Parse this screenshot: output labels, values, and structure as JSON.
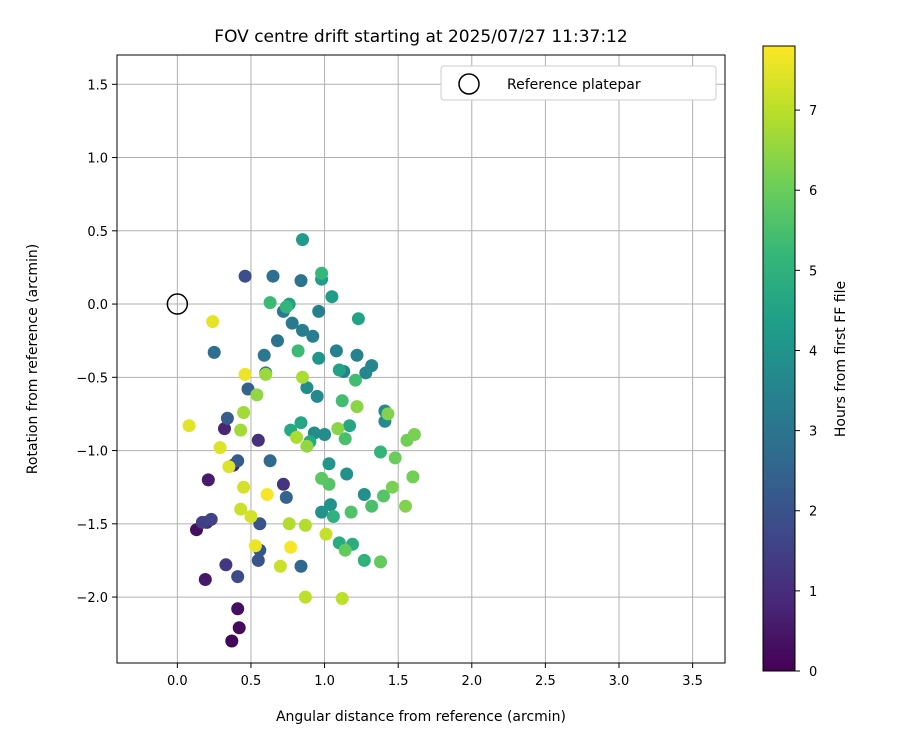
{
  "chart_data": {
    "type": "scatter",
    "title": "FOV centre drift starting at 2025/07/27 11:37:12",
    "xlabel": "Angular distance from reference (arcmin)",
    "ylabel": "Rotation from reference (arcmin)",
    "xlim": [
      -0.41,
      3.72
    ],
    "ylim": [
      -2.45,
      1.7
    ],
    "xticks": [
      0.0,
      0.5,
      1.0,
      1.5,
      2.0,
      2.5,
      3.0,
      3.5
    ],
    "xtick_labels": [
      "0.0",
      "0.5",
      "1.0",
      "1.5",
      "2.0",
      "2.5",
      "3.0",
      "3.5"
    ],
    "yticks": [
      1.5,
      1.0,
      0.5,
      0.0,
      -0.5,
      -1.0,
      -1.5,
      -2.0
    ],
    "ytick_labels": [
      "1.5",
      "1.0",
      "0.5",
      "0.0",
      "−0.5",
      "−1.0",
      "−1.5",
      "−2.0"
    ],
    "grid": true,
    "legend": {
      "placement": "upper right",
      "entries": [
        "Reference platepar"
      ]
    },
    "reference_point": {
      "x": 0.0,
      "y": 0.0,
      "label": "Reference platepar"
    },
    "colorbar": {
      "label": "Hours from first FF file",
      "min": 0,
      "max": 7.8,
      "ticks": [
        0,
        1,
        2,
        3,
        4,
        5,
        6,
        7
      ],
      "tick_labels": [
        "0",
        "1",
        "2",
        "3",
        "4",
        "5",
        "6",
        "7"
      ],
      "colormap": "viridis"
    },
    "colormap_stops": [
      "#440154",
      "#482878",
      "#3e4989",
      "#31688e",
      "#26828e",
      "#1f9e89",
      "#35b779",
      "#6ece58",
      "#b5de2b",
      "#fde725"
    ],
    "points": [
      {
        "x": 0.37,
        "y": -2.3,
        "h": 0.1
      },
      {
        "x": 0.42,
        "y": -2.21,
        "h": 0.2
      },
      {
        "x": 0.41,
        "y": -2.08,
        "h": 0.3
      },
      {
        "x": 0.13,
        "y": -1.54,
        "h": 0.3
      },
      {
        "x": 0.19,
        "y": -1.88,
        "h": 0.5
      },
      {
        "x": 0.21,
        "y": -1.2,
        "h": 0.6
      },
      {
        "x": 0.38,
        "y": -1.1,
        "h": 0.7
      },
      {
        "x": 0.32,
        "y": -0.85,
        "h": 0.8
      },
      {
        "x": 0.2,
        "y": -1.49,
        "h": 1.0
      },
      {
        "x": 0.55,
        "y": -0.93,
        "h": 1.1
      },
      {
        "x": 0.72,
        "y": -1.23,
        "h": 1.2
      },
      {
        "x": 0.33,
        "y": -1.78,
        "h": 1.3
      },
      {
        "x": 0.17,
        "y": -1.49,
        "h": 1.5
      },
      {
        "x": 0.23,
        "y": -1.47,
        "h": 1.6
      },
      {
        "x": 0.41,
        "y": -1.86,
        "h": 1.8
      },
      {
        "x": 0.46,
        "y": 0.19,
        "h": 1.9
      },
      {
        "x": 0.56,
        "y": -1.5,
        "h": 2.0
      },
      {
        "x": 0.55,
        "y": -1.75,
        "h": 2.0
      },
      {
        "x": 0.56,
        "y": -1.68,
        "h": 2.1
      },
      {
        "x": 0.41,
        "y": -1.07,
        "h": 2.2
      },
      {
        "x": 0.34,
        "y": -0.78,
        "h": 2.3
      },
      {
        "x": 0.48,
        "y": -0.58,
        "h": 2.4
      },
      {
        "x": 0.74,
        "y": -1.32,
        "h": 2.5
      },
      {
        "x": 0.84,
        "y": -1.79,
        "h": 2.6
      },
      {
        "x": 0.63,
        "y": -1.07,
        "h": 2.7
      },
      {
        "x": 0.25,
        "y": -0.33,
        "h": 2.8
      },
      {
        "x": 0.65,
        "y": 0.19,
        "h": 2.9
      },
      {
        "x": 0.84,
        "y": 0.16,
        "h": 3.0
      },
      {
        "x": 0.68,
        "y": -0.25,
        "h": 3.0
      },
      {
        "x": 0.6,
        "y": -0.47,
        "h": 3.1
      },
      {
        "x": 0.59,
        "y": -0.35,
        "h": 3.1
      },
      {
        "x": 0.72,
        "y": -0.05,
        "h": 3.2
      },
      {
        "x": 0.78,
        "y": -0.13,
        "h": 3.2
      },
      {
        "x": 0.85,
        "y": -0.18,
        "h": 3.3
      },
      {
        "x": 0.92,
        "y": -0.22,
        "h": 3.3
      },
      {
        "x": 0.96,
        "y": -0.05,
        "h": 3.4
      },
      {
        "x": 1.08,
        "y": -0.32,
        "h": 3.4
      },
      {
        "x": 1.13,
        "y": -0.46,
        "h": 3.5
      },
      {
        "x": 1.22,
        "y": -0.35,
        "h": 3.5
      },
      {
        "x": 1.32,
        "y": -0.42,
        "h": 3.6
      },
      {
        "x": 1.28,
        "y": -0.47,
        "h": 3.6
      },
      {
        "x": 1.41,
        "y": -0.73,
        "h": 3.6
      },
      {
        "x": 1.41,
        "y": -0.8,
        "h": 3.7
      },
      {
        "x": 0.95,
        "y": -0.63,
        "h": 3.7
      },
      {
        "x": 0.88,
        "y": -0.57,
        "h": 3.8
      },
      {
        "x": 1.0,
        "y": -0.89,
        "h": 3.8
      },
      {
        "x": 0.93,
        "y": -0.88,
        "h": 3.8
      },
      {
        "x": 1.15,
        "y": -1.16,
        "h": 3.9
      },
      {
        "x": 1.27,
        "y": -1.3,
        "h": 3.9
      },
      {
        "x": 1.04,
        "y": -1.37,
        "h": 4.0
      },
      {
        "x": 0.98,
        "y": -1.42,
        "h": 4.0
      },
      {
        "x": 1.03,
        "y": -1.09,
        "h": 4.1
      },
      {
        "x": 0.96,
        "y": -0.37,
        "h": 4.1
      },
      {
        "x": 0.85,
        "y": 0.44,
        "h": 4.2
      },
      {
        "x": 0.98,
        "y": 0.17,
        "h": 4.3
      },
      {
        "x": 1.05,
        "y": 0.05,
        "h": 4.3
      },
      {
        "x": 0.76,
        "y": 0.0,
        "h": 4.4
      },
      {
        "x": 1.23,
        "y": -0.1,
        "h": 4.5
      },
      {
        "x": 1.1,
        "y": -0.45,
        "h": 4.5
      },
      {
        "x": 1.17,
        "y": -0.83,
        "h": 4.6
      },
      {
        "x": 0.84,
        "y": -0.81,
        "h": 4.6
      },
      {
        "x": 0.9,
        "y": -0.94,
        "h": 4.7
      },
      {
        "x": 0.77,
        "y": -0.86,
        "h": 4.7
      },
      {
        "x": 1.1,
        "y": -1.63,
        "h": 4.8
      },
      {
        "x": 1.19,
        "y": -1.64,
        "h": 4.8
      },
      {
        "x": 1.27,
        "y": -1.75,
        "h": 5.0
      },
      {
        "x": 1.06,
        "y": -1.45,
        "h": 5.0
      },
      {
        "x": 1.38,
        "y": -1.01,
        "h": 5.1
      },
      {
        "x": 0.74,
        "y": -0.02,
        "h": 5.1
      },
      {
        "x": 0.98,
        "y": 0.21,
        "h": 5.2
      },
      {
        "x": 0.63,
        "y": 0.01,
        "h": 5.3
      },
      {
        "x": 0.82,
        "y": -0.32,
        "h": 5.3
      },
      {
        "x": 1.21,
        "y": -0.52,
        "h": 5.4
      },
      {
        "x": 1.12,
        "y": -0.66,
        "h": 5.4
      },
      {
        "x": 1.14,
        "y": -0.92,
        "h": 5.5
      },
      {
        "x": 1.32,
        "y": -1.38,
        "h": 5.5
      },
      {
        "x": 1.18,
        "y": -1.42,
        "h": 5.6
      },
      {
        "x": 1.4,
        "y": -1.31,
        "h": 5.7
      },
      {
        "x": 1.03,
        "y": -1.23,
        "h": 5.7
      },
      {
        "x": 0.98,
        "y": -1.19,
        "h": 5.8
      },
      {
        "x": 1.14,
        "y": -1.68,
        "h": 5.9
      },
      {
        "x": 1.38,
        "y": -1.76,
        "h": 5.9
      },
      {
        "x": 1.48,
        "y": -1.05,
        "h": 6.0
      },
      {
        "x": 1.56,
        "y": -0.93,
        "h": 6.1
      },
      {
        "x": 1.6,
        "y": -1.18,
        "h": 6.1
      },
      {
        "x": 1.61,
        "y": -0.89,
        "h": 6.2
      },
      {
        "x": 1.46,
        "y": -1.25,
        "h": 6.2
      },
      {
        "x": 1.55,
        "y": -1.38,
        "h": 6.3
      },
      {
        "x": 1.43,
        "y": -0.75,
        "h": 6.3
      },
      {
        "x": 1.22,
        "y": -0.7,
        "h": 6.4
      },
      {
        "x": 1.09,
        "y": -0.85,
        "h": 6.4
      },
      {
        "x": 0.88,
        "y": -0.97,
        "h": 6.5
      },
      {
        "x": 0.54,
        "y": -0.62,
        "h": 6.5
      },
      {
        "x": 0.6,
        "y": -0.48,
        "h": 6.6
      },
      {
        "x": 0.45,
        "y": -0.74,
        "h": 6.7
      },
      {
        "x": 0.43,
        "y": -0.86,
        "h": 6.7
      },
      {
        "x": 0.85,
        "y": -0.5,
        "h": 6.8
      },
      {
        "x": 0.81,
        "y": -0.91,
        "h": 6.8
      },
      {
        "x": 0.76,
        "y": -1.5,
        "h": 6.9
      },
      {
        "x": 0.87,
        "y": -1.51,
        "h": 6.9
      },
      {
        "x": 0.87,
        "y": -2.0,
        "h": 7.0
      },
      {
        "x": 1.12,
        "y": -2.01,
        "h": 7.0
      },
      {
        "x": 1.01,
        "y": -1.57,
        "h": 7.1
      },
      {
        "x": 0.7,
        "y": -1.79,
        "h": 7.2
      },
      {
        "x": 0.43,
        "y": -1.4,
        "h": 7.2
      },
      {
        "x": 0.5,
        "y": -1.45,
        "h": 7.3
      },
      {
        "x": 0.45,
        "y": -1.25,
        "h": 7.3
      },
      {
        "x": 0.35,
        "y": -1.11,
        "h": 7.4
      },
      {
        "x": 0.29,
        "y": -0.98,
        "h": 7.4
      },
      {
        "x": 0.08,
        "y": -0.83,
        "h": 7.5
      },
      {
        "x": 0.24,
        "y": -0.12,
        "h": 7.5
      },
      {
        "x": 0.46,
        "y": -0.48,
        "h": 7.6
      },
      {
        "x": 0.53,
        "y": -1.65,
        "h": 7.6
      },
      {
        "x": 0.61,
        "y": -1.3,
        "h": 7.7
      },
      {
        "x": 0.77,
        "y": -1.66,
        "h": 7.7
      }
    ]
  }
}
